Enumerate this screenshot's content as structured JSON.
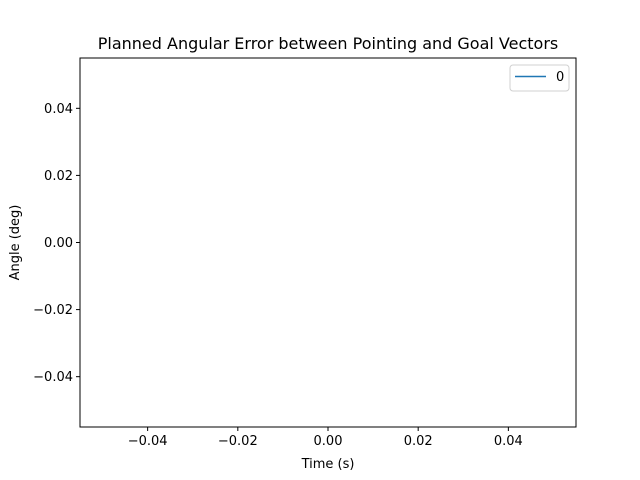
{
  "chart_data": {
    "type": "line",
    "title": "Planned Angular Error between Pointing and Goal Vectors",
    "xlabel": "Time (s)",
    "ylabel": "Angle (deg)",
    "xlim": [
      -0.055,
      0.055
    ],
    "ylim": [
      -0.055,
      0.055
    ],
    "xticks": [
      -0.04,
      -0.02,
      0.0,
      0.02,
      0.04
    ],
    "xtick_labels": [
      "−0.04",
      "−0.02",
      "0.00",
      "0.02",
      "0.04"
    ],
    "yticks": [
      0.04,
      0.02,
      0.0,
      -0.02,
      -0.04
    ],
    "ytick_labels": [
      "0.04",
      "0.02",
      "0.00",
      "−0.02",
      "−0.04"
    ],
    "grid": false,
    "legend_position": "top-right",
    "series": [
      {
        "name": "0",
        "color": "#1f77b4",
        "x": [],
        "y": []
      }
    ]
  }
}
